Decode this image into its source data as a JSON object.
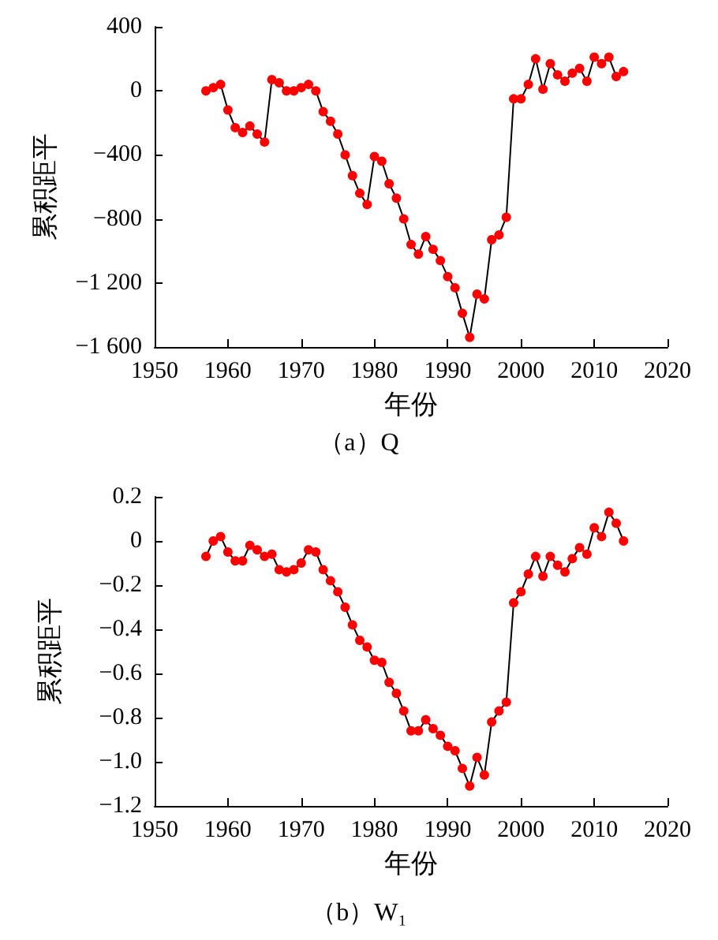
{
  "chart_data": [
    {
      "type": "line",
      "title": "（a）Q",
      "xlabel": "年份",
      "ylabel": "累积距平",
      "marker": "circle",
      "line_style": "solid",
      "xlim": [
        1950,
        2020
      ],
      "xticks": [
        1950,
        1960,
        1970,
        1980,
        1990,
        2000,
        2010,
        2020
      ],
      "ylim": [
        -1600,
        400
      ],
      "yticks": [
        {
          "value": -1600,
          "label": "−1 600"
        },
        {
          "value": -1200,
          "label": "−1 200"
        },
        {
          "value": -800,
          "label": "−800"
        },
        {
          "value": -400,
          "label": "−400"
        },
        0,
        400
      ],
      "x": [
        1957,
        1958,
        1959,
        1960,
        1961,
        1962,
        1963,
        1964,
        1965,
        1966,
        1967,
        1968,
        1969,
        1970,
        1971,
        1972,
        1973,
        1974,
        1975,
        1976,
        1977,
        1978,
        1979,
        1980,
        1981,
        1982,
        1983,
        1984,
        1985,
        1986,
        1987,
        1988,
        1989,
        1990,
        1991,
        1992,
        1993,
        1994,
        1995,
        1996,
        1997,
        1998,
        1999,
        2000,
        2001,
        2002,
        2003,
        2004,
        2005,
        2006,
        2007,
        2008,
        2009,
        2010,
        2011,
        2012,
        2013,
        2014
      ],
      "series": [
        {
          "color": "#ff0000",
          "values": [
            0,
            20,
            40,
            -120,
            -230,
            -260,
            -220,
            -270,
            -320,
            70,
            50,
            0,
            0,
            20,
            40,
            0,
            -130,
            -190,
            -270,
            -400,
            -530,
            -640,
            -710,
            -410,
            -440,
            -580,
            -670,
            -800,
            -960,
            -1020,
            -910,
            -990,
            -1060,
            -1160,
            -1230,
            -1390,
            -1540,
            -1270,
            -1300,
            -930,
            -900,
            -790,
            -50,
            -50,
            40,
            200,
            10,
            170,
            100,
            60,
            110,
            140,
            60,
            210,
            170,
            210,
            90,
            120
          ]
        }
      ]
    },
    {
      "type": "line",
      "title": "（b）W₁",
      "xlabel": "年份",
      "ylabel": "累积距平",
      "marker": "circle",
      "line_style": "solid",
      "xlim": [
        1950,
        2020
      ],
      "xticks": [
        1950,
        1960,
        1970,
        1980,
        1990,
        2000,
        2010,
        2020
      ],
      "ylim": [
        -1.2,
        0.2
      ],
      "yticks": [
        {
          "value": -1.2,
          "label": "−1.2"
        },
        {
          "value": -1.0,
          "label": "−1.0"
        },
        {
          "value": -0.8,
          "label": "−0.8"
        },
        {
          "value": -0.6,
          "label": "−0.6"
        },
        {
          "value": -0.4,
          "label": "−0.4"
        },
        {
          "value": -0.2,
          "label": "−0.2"
        },
        0,
        0.2
      ],
      "x": [
        1957,
        1958,
        1959,
        1960,
        1961,
        1962,
        1963,
        1964,
        1965,
        1966,
        1967,
        1968,
        1969,
        1970,
        1971,
        1972,
        1973,
        1974,
        1975,
        1976,
        1977,
        1978,
        1979,
        1980,
        1981,
        1982,
        1983,
        1984,
        1985,
        1986,
        1987,
        1988,
        1989,
        1990,
        1991,
        1992,
        1993,
        1994,
        1995,
        1996,
        1997,
        1998,
        1999,
        2000,
        2001,
        2002,
        2003,
        2004,
        2005,
        2006,
        2007,
        2008,
        2009,
        2010,
        2011,
        2012,
        2013,
        2014
      ],
      "series": [
        {
          "color": "#ff0000",
          "values": [
            -0.07,
            0.0,
            0.02,
            -0.05,
            -0.09,
            -0.09,
            -0.02,
            -0.04,
            -0.07,
            -0.06,
            -0.13,
            -0.14,
            -0.13,
            -0.1,
            -0.04,
            -0.05,
            -0.13,
            -0.18,
            -0.23,
            -0.3,
            -0.38,
            -0.45,
            -0.48,
            -0.54,
            -0.55,
            -0.64,
            -0.69,
            -0.77,
            -0.86,
            -0.86,
            -0.81,
            -0.85,
            -0.88,
            -0.93,
            -0.95,
            -1.03,
            -1.11,
            -0.98,
            -1.06,
            -0.82,
            -0.77,
            -0.73,
            -0.28,
            -0.23,
            -0.15,
            -0.07,
            -0.16,
            -0.07,
            -0.11,
            -0.14,
            -0.08,
            -0.03,
            -0.06,
            0.06,
            0.02,
            0.13,
            0.08,
            0.0
          ]
        }
      ]
    }
  ]
}
